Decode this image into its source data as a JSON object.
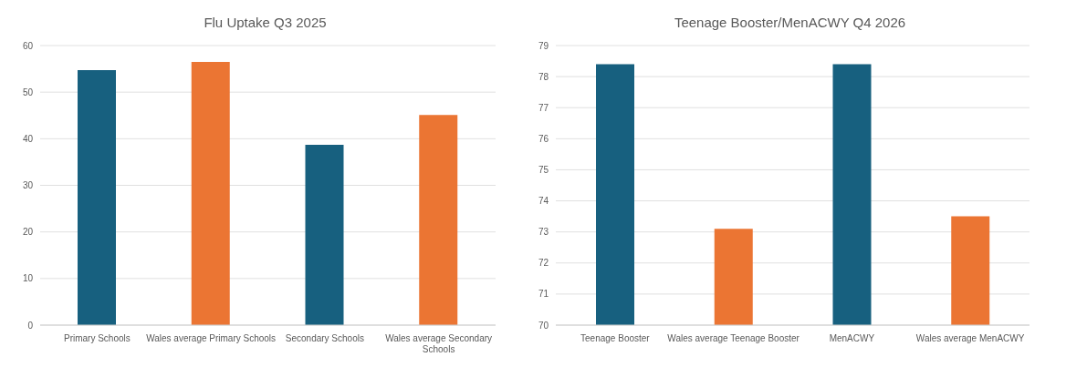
{
  "chart_data": [
    {
      "type": "bar",
      "title": "Flu Uptake Q3 2025",
      "categories": [
        "Primary Schools",
        "Wales average Primary Schools",
        "Secondary Schools",
        "Wales average Secondary Schools"
      ],
      "values": [
        54.7,
        56.5,
        38.7,
        45.1
      ],
      "colors": [
        "#17607f",
        "#eb7533",
        "#17607f",
        "#eb7533"
      ],
      "ylim": [
        0,
        60
      ],
      "yticks": [
        0,
        10,
        20,
        30,
        40,
        50,
        60
      ],
      "grid": "y"
    },
    {
      "type": "bar",
      "title": "Teenage Booster/MenACWY Q4 2026",
      "categories": [
        "Teenage Booster",
        "Wales average Teenage Booster",
        "MenACWY",
        "Wales average MenACWY"
      ],
      "values": [
        78.4,
        73.1,
        78.4,
        73.5
      ],
      "colors": [
        "#17607f",
        "#eb7533",
        "#17607f",
        "#eb7533"
      ],
      "ylim": [
        70,
        79
      ],
      "yticks": [
        70,
        71,
        72,
        73,
        74,
        75,
        76,
        77,
        78,
        79
      ],
      "grid": "y"
    }
  ]
}
